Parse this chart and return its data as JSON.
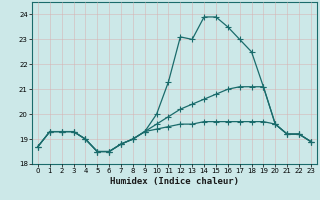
{
  "title": "",
  "xlabel": "Humidex (Indice chaleur)",
  "ylabel": "",
  "bg_color": "#cce8e8",
  "grid_color": "#b0d0d0",
  "line_color": "#1a6b6b",
  "x_ticks": [
    0,
    1,
    2,
    3,
    4,
    5,
    6,
    7,
    8,
    9,
    10,
    11,
    12,
    13,
    14,
    15,
    16,
    17,
    18,
    19,
    20,
    21,
    22,
    23
  ],
  "ylim": [
    18,
    24.5
  ],
  "xlim": [
    -0.5,
    23.5
  ],
  "series1_y": [
    18.7,
    19.3,
    19.3,
    19.3,
    19.0,
    18.5,
    18.5,
    18.8,
    19.0,
    19.3,
    20.0,
    21.3,
    23.1,
    23.0,
    23.9,
    23.9,
    23.5,
    23.0,
    22.5,
    21.1,
    19.6,
    19.2,
    19.2,
    18.9
  ],
  "series2_y": [
    18.7,
    19.3,
    19.3,
    19.3,
    19.0,
    18.5,
    18.5,
    18.8,
    19.0,
    19.3,
    19.6,
    19.9,
    20.2,
    20.4,
    20.6,
    20.8,
    21.0,
    21.1,
    21.1,
    21.1,
    19.6,
    19.2,
    19.2,
    18.9
  ],
  "series3_y": [
    18.7,
    19.3,
    19.3,
    19.3,
    19.0,
    18.5,
    18.5,
    18.8,
    19.0,
    19.3,
    19.4,
    19.5,
    19.6,
    19.6,
    19.7,
    19.7,
    19.7,
    19.7,
    19.7,
    19.7,
    19.6,
    19.2,
    19.2,
    18.9
  ],
  "yticks": [
    18,
    19,
    20,
    21,
    22,
    23,
    24
  ],
  "marker": "o",
  "markersize": 2.0,
  "linewidth": 0.9
}
